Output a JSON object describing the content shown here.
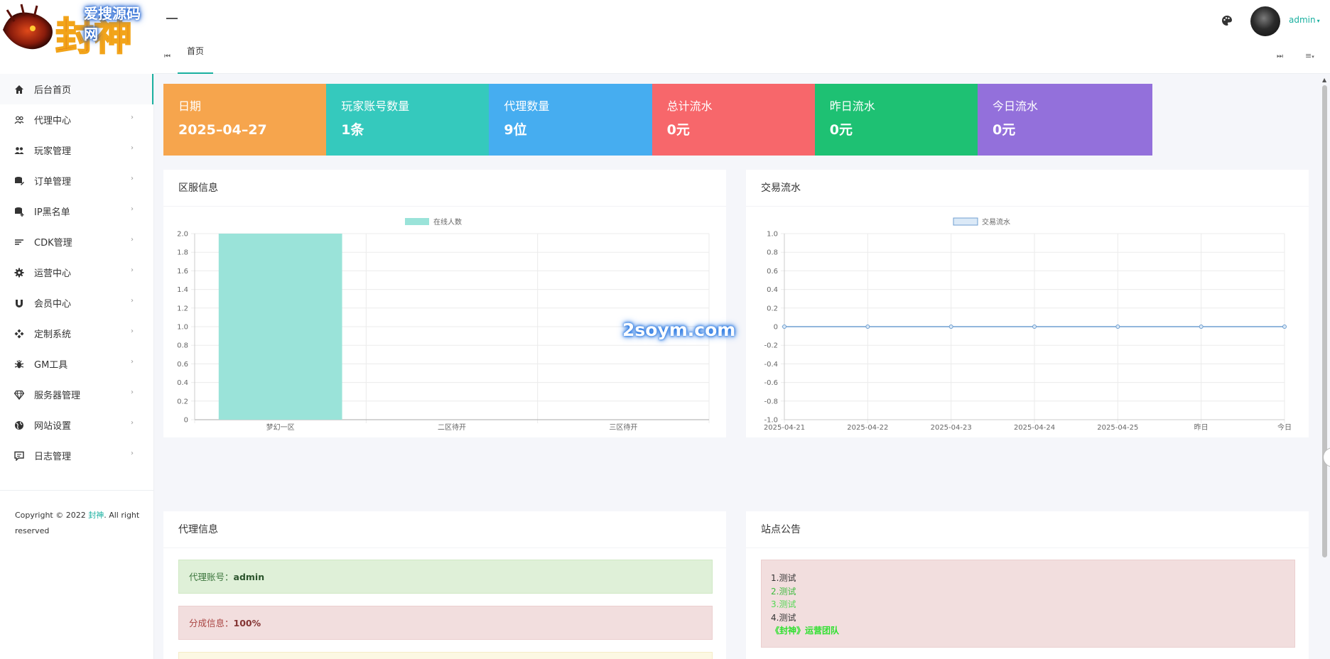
{
  "brand": {
    "logo_text": "封神",
    "watermark_top": "爱搜源码网",
    "watermark_mid": "2soym.com"
  },
  "header": {
    "user_name": "admin",
    "palette_icon": "palette-icon",
    "menu_icon": "hamburger-icon"
  },
  "tabs": {
    "first_icon": "skip-start-icon",
    "items": [
      {
        "label": "首页"
      }
    ],
    "last_icon": "skip-end-icon",
    "more_icon": "list-dropdown-icon"
  },
  "sidebar": {
    "items": [
      {
        "label": "后台首页",
        "icon": "home-icon",
        "active": true,
        "has_children": false
      },
      {
        "label": "代理中心",
        "icon": "users-outline-icon",
        "has_children": true
      },
      {
        "label": "玩家管理",
        "icon": "users-icon",
        "has_children": true
      },
      {
        "label": "订单管理",
        "icon": "database-edit-icon",
        "has_children": true
      },
      {
        "label": "IP黑名单",
        "icon": "database-add-icon",
        "has_children": true
      },
      {
        "label": "CDK管理",
        "icon": "sort-lines-icon",
        "has_children": true
      },
      {
        "label": "运营中心",
        "icon": "gear-icon",
        "has_children": true
      },
      {
        "label": "会员中心",
        "icon": "magnet-icon",
        "has_children": true
      },
      {
        "label": "定制系统",
        "icon": "diamonds-icon",
        "has_children": true
      },
      {
        "label": "GM工具",
        "icon": "bug-icon",
        "has_children": true
      },
      {
        "label": "服务器管理",
        "icon": "gem-icon",
        "has_children": true
      },
      {
        "label": "网站设置",
        "icon": "globe-icon",
        "has_children": true
      },
      {
        "label": "日志管理",
        "icon": "comment-icon",
        "has_children": true
      }
    ],
    "footer": {
      "prefix": "Copyright © 2022 ",
      "link": "封神",
      "suffix": ". All right",
      "line2": "reserved"
    }
  },
  "stats": [
    {
      "label": "日期",
      "value": "2025–04–27",
      "color": "#f6a54d"
    },
    {
      "label": "玩家账号数量",
      "value": "1条",
      "color": "#35c9bd"
    },
    {
      "label": "代理数量",
      "value": "9位",
      "color": "#46adf0"
    },
    {
      "label": "总计流水",
      "value": "0元",
      "color": "#f7676b"
    },
    {
      "label": "昨日流水",
      "value": "0元",
      "color": "#1ec173"
    },
    {
      "label": "今日流水",
      "value": "0元",
      "color": "#9370db"
    }
  ],
  "panels": {
    "server_info": {
      "title": "区服信息"
    },
    "trade_flow": {
      "title": "交易流水"
    },
    "agent_info": {
      "title": "代理信息",
      "account_label": "代理账号：",
      "account_value": "admin",
      "share_label": "分成信息：",
      "share_value": "100%"
    },
    "notice": {
      "title": "站点公告",
      "lines": [
        {
          "text": "1.测试",
          "color": "#333333"
        },
        {
          "text": "2.测试",
          "color": "#3dbb3d"
        },
        {
          "text": "3.测试",
          "color": "#53d853"
        },
        {
          "text": "4.测试",
          "color": "#333333"
        },
        {
          "text": "《封神》运营团队",
          "color": "#2ee02e",
          "bold": true
        }
      ]
    }
  },
  "chart_data": [
    {
      "type": "bar",
      "legend": [
        "在线人数"
      ],
      "categories": [
        "梦幻一区",
        "二区待开",
        "三区待开"
      ],
      "series": [
        {
          "name": "在线人数",
          "values": [
            2,
            0,
            0
          ],
          "color": "#9ae3d9"
        }
      ],
      "ylim": [
        0,
        2
      ],
      "yticks": [
        "0",
        "0.2",
        "0.4",
        "0.6",
        "0.8",
        "1.0",
        "1.2",
        "1.4",
        "1.6",
        "1.8",
        "2.0"
      ],
      "grid": true
    },
    {
      "type": "line",
      "legend": [
        "交易流水"
      ],
      "x": [
        "2025-04-21",
        "2025-04-22",
        "2025-04-23",
        "2025-04-24",
        "2025-04-25",
        "昨日",
        "今日"
      ],
      "series": [
        {
          "name": "交易流水",
          "values": [
            0,
            0,
            0,
            0,
            0,
            0,
            0
          ],
          "color": "#6f9fd0"
        }
      ],
      "ylim": [
        -1,
        1
      ],
      "yticks": [
        "1.0",
        "0.8",
        "0.6",
        "0.4",
        "0.2",
        "0",
        "-0.2",
        "-0.4",
        "-0.6",
        "-0.8",
        "-1.0"
      ],
      "grid": true
    }
  ]
}
